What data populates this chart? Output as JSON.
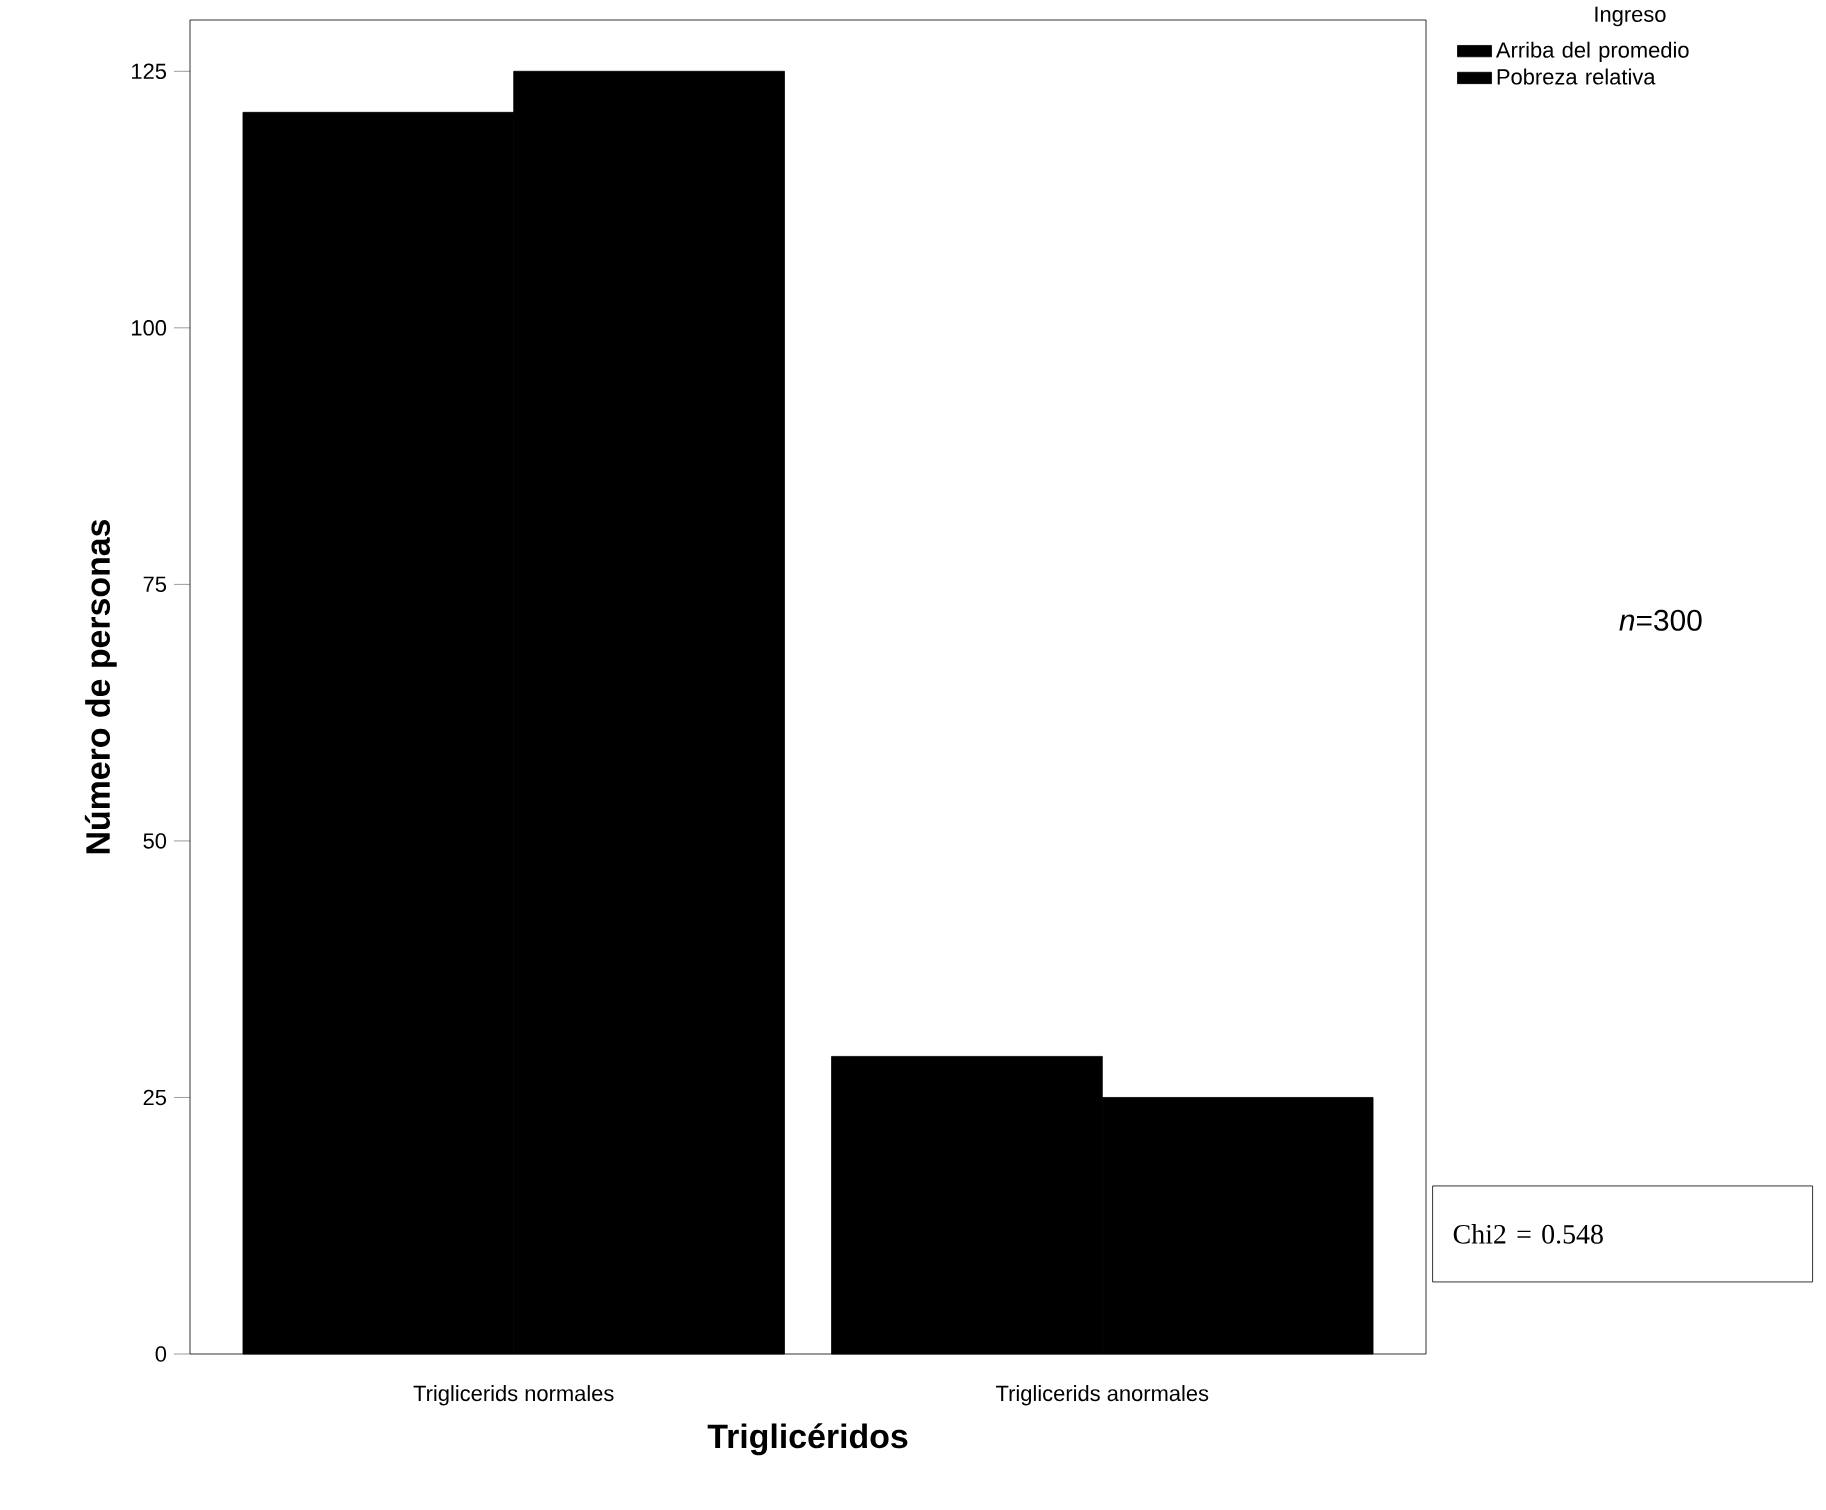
{
  "chart_data": {
    "type": "bar",
    "xlabel": "Triglicéridos",
    "ylabel": "Número de personas",
    "categories": [
      "Triglicerids normales",
      "Triglicerids anormales"
    ],
    "legend_title": "Ingreso",
    "series": [
      {
        "name": "Arriba del promedio",
        "color": "#000000",
        "values": [
          121,
          29
        ]
      },
      {
        "name": "Pobreza relativa",
        "color": "#000000",
        "values": [
          125,
          25
        ]
      }
    ],
    "ylim": [
      0,
      130
    ],
    "yticks": [
      0,
      25,
      50,
      75,
      100,
      125
    ],
    "grid": false,
    "legend": "top right",
    "annotations": [
      "*n*=300",
      "Chi2 = 0.548"
    ]
  }
}
